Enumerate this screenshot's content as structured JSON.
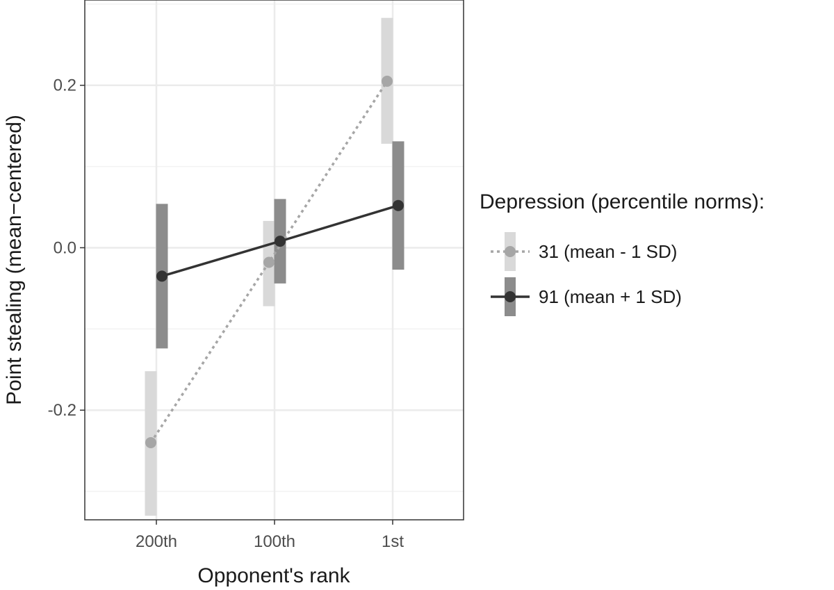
{
  "chart_data": {
    "type": "line",
    "xlabel": "Opponent's rank",
    "ylabel": "Point stealing (mean−centered)",
    "categories": [
      "200th",
      "100th",
      "1st"
    ],
    "ylim": [
      -0.335,
      0.305
    ],
    "yticks": [
      -0.2,
      0.0,
      0.2
    ],
    "ytick_labels": [
      "-0.2",
      "0.0",
      "0.2"
    ],
    "grid": true,
    "legend": {
      "title": "Depression (percentile norms):",
      "position": "right"
    },
    "series": [
      {
        "name": "31 (mean - 1 SD)",
        "values": [
          -0.24,
          -0.018,
          0.205
        ],
        "lower": [
          -0.33,
          -0.072,
          0.128
        ],
        "upper": [
          -0.152,
          0.033,
          0.283
        ],
        "line_style": "dotted",
        "color": "#a6a6a6",
        "bar_color": "#d9d9d9"
      },
      {
        "name": "91 (mean + 1 SD)",
        "values": [
          -0.035,
          0.008,
          0.052
        ],
        "lower": [
          -0.124,
          -0.044,
          -0.027
        ],
        "upper": [
          0.054,
          0.06,
          0.131
        ],
        "line_style": "solid",
        "color": "#333333",
        "bar_color": "#8c8c8c"
      }
    ]
  }
}
